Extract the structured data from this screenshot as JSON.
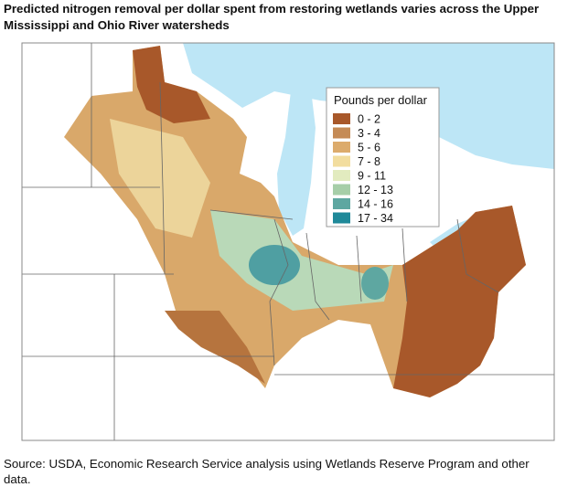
{
  "title": "Predicted nitrogen removal per dollar spent from restoring wetlands varies across the Upper Mississippi and Ohio River watersheds",
  "legend": {
    "title": "Pounds per dollar",
    "items": [
      {
        "label": "0 - 2",
        "color": "#a8582a"
      },
      {
        "label": "3 - 4",
        "color": "#c58b56"
      },
      {
        "label": "5 - 6",
        "color": "#dcab6c"
      },
      {
        "label": "7 - 8",
        "color": "#f2dd9e"
      },
      {
        "label": "9 - 11",
        "color": "#e2ebbf"
      },
      {
        "label": "12 - 13",
        "color": "#a6cea8"
      },
      {
        "label": "14 - 16",
        "color": "#5ea7a1"
      },
      {
        "label": "17 - 34",
        "color": "#1f8999"
      }
    ]
  },
  "source": "Source: USDA, Economic Research Service analysis using Wetlands Reserve Program and other data."
}
